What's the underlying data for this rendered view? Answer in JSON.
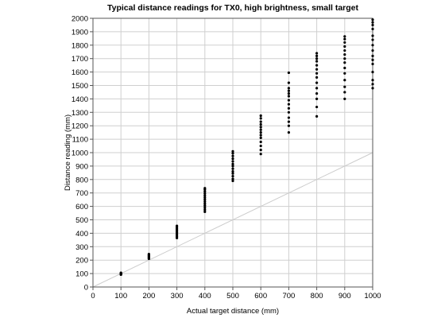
{
  "chart_data": {
    "type": "scatter",
    "title": "Typical distance readings for TX0, high brightness, small target",
    "xlabel": "Actual target distance (mm)",
    "ylabel": "Distance reading (mm)",
    "xlim": [
      0,
      1000
    ],
    "ylim": [
      0,
      2000
    ],
    "x_ticks": [
      0,
      100,
      200,
      300,
      400,
      500,
      600,
      700,
      800,
      900,
      1000
    ],
    "y_ticks": [
      0,
      100,
      200,
      300,
      400,
      500,
      600,
      700,
      800,
      900,
      1000,
      1100,
      1200,
      1300,
      1400,
      1500,
      1600,
      1700,
      1800,
      1900,
      2000
    ],
    "grid": true,
    "reference_line": {
      "from": [
        0,
        0
      ],
      "to": [
        1000,
        1000
      ],
      "color": "#cccccc"
    },
    "series": [
      {
        "color": "#000000",
        "points": [
          [
            100,
            92
          ],
          [
            100,
            95
          ],
          [
            100,
            98
          ],
          [
            100,
            100
          ],
          [
            100,
            103
          ],
          [
            100,
            106
          ],
          [
            200,
            210
          ],
          [
            200,
            215
          ],
          [
            200,
            220
          ],
          [
            200,
            225
          ],
          [
            200,
            230
          ],
          [
            200,
            235
          ],
          [
            200,
            240
          ],
          [
            200,
            245
          ],
          [
            300,
            365
          ],
          [
            300,
            375
          ],
          [
            300,
            385
          ],
          [
            300,
            395
          ],
          [
            300,
            405
          ],
          [
            300,
            415
          ],
          [
            300,
            425
          ],
          [
            300,
            435
          ],
          [
            300,
            445
          ],
          [
            300,
            455
          ],
          [
            400,
            560
          ],
          [
            400,
            575
          ],
          [
            400,
            590
          ],
          [
            400,
            605
          ],
          [
            400,
            620
          ],
          [
            400,
            635
          ],
          [
            400,
            650
          ],
          [
            400,
            665
          ],
          [
            400,
            680
          ],
          [
            400,
            695
          ],
          [
            400,
            710
          ],
          [
            400,
            725
          ],
          [
            400,
            735
          ],
          [
            500,
            790
          ],
          [
            500,
            805
          ],
          [
            500,
            825
          ],
          [
            500,
            845
          ],
          [
            500,
            860
          ],
          [
            500,
            880
          ],
          [
            500,
            900
          ],
          [
            500,
            915
          ],
          [
            500,
            935
          ],
          [
            500,
            955
          ],
          [
            500,
            975
          ],
          [
            500,
            995
          ],
          [
            500,
            1010
          ],
          [
            600,
            990
          ],
          [
            600,
            1020
          ],
          [
            600,
            1050
          ],
          [
            600,
            1080
          ],
          [
            600,
            1110
          ],
          [
            600,
            1130
          ],
          [
            600,
            1150
          ],
          [
            600,
            1170
          ],
          [
            600,
            1190
          ],
          [
            600,
            1210
          ],
          [
            600,
            1230
          ],
          [
            600,
            1255
          ],
          [
            600,
            1275
          ],
          [
            700,
            1150
          ],
          [
            700,
            1200
          ],
          [
            700,
            1230
          ],
          [
            700,
            1260
          ],
          [
            700,
            1300
          ],
          [
            700,
            1330
          ],
          [
            700,
            1360
          ],
          [
            700,
            1390
          ],
          [
            700,
            1420
          ],
          [
            700,
            1440
          ],
          [
            700,
            1460
          ],
          [
            700,
            1480
          ],
          [
            700,
            1520
          ],
          [
            700,
            1595
          ],
          [
            800,
            1270
          ],
          [
            800,
            1340
          ],
          [
            800,
            1400
          ],
          [
            800,
            1440
          ],
          [
            800,
            1480
          ],
          [
            800,
            1520
          ],
          [
            800,
            1560
          ],
          [
            800,
            1590
          ],
          [
            800,
            1620
          ],
          [
            800,
            1650
          ],
          [
            800,
            1680
          ],
          [
            800,
            1700
          ],
          [
            800,
            1720
          ],
          [
            800,
            1740
          ],
          [
            900,
            1400
          ],
          [
            900,
            1450
          ],
          [
            900,
            1490
          ],
          [
            900,
            1540
          ],
          [
            900,
            1590
          ],
          [
            900,
            1630
          ],
          [
            900,
            1670
          ],
          [
            900,
            1700
          ],
          [
            900,
            1730
          ],
          [
            900,
            1760
          ],
          [
            900,
            1790
          ],
          [
            900,
            1820
          ],
          [
            900,
            1845
          ],
          [
            900,
            1865
          ],
          [
            1000,
            1480
          ],
          [
            1000,
            1510
          ],
          [
            1000,
            1540
          ],
          [
            1000,
            1600
          ],
          [
            1000,
            1660
          ],
          [
            1000,
            1690
          ],
          [
            1000,
            1720
          ],
          [
            1000,
            1760
          ],
          [
            1000,
            1800
          ],
          [
            1000,
            1840
          ],
          [
            1000,
            1870
          ],
          [
            1000,
            1920
          ],
          [
            1000,
            1950
          ],
          [
            1000,
            1970
          ],
          [
            1000,
            1990
          ]
        ]
      }
    ]
  }
}
